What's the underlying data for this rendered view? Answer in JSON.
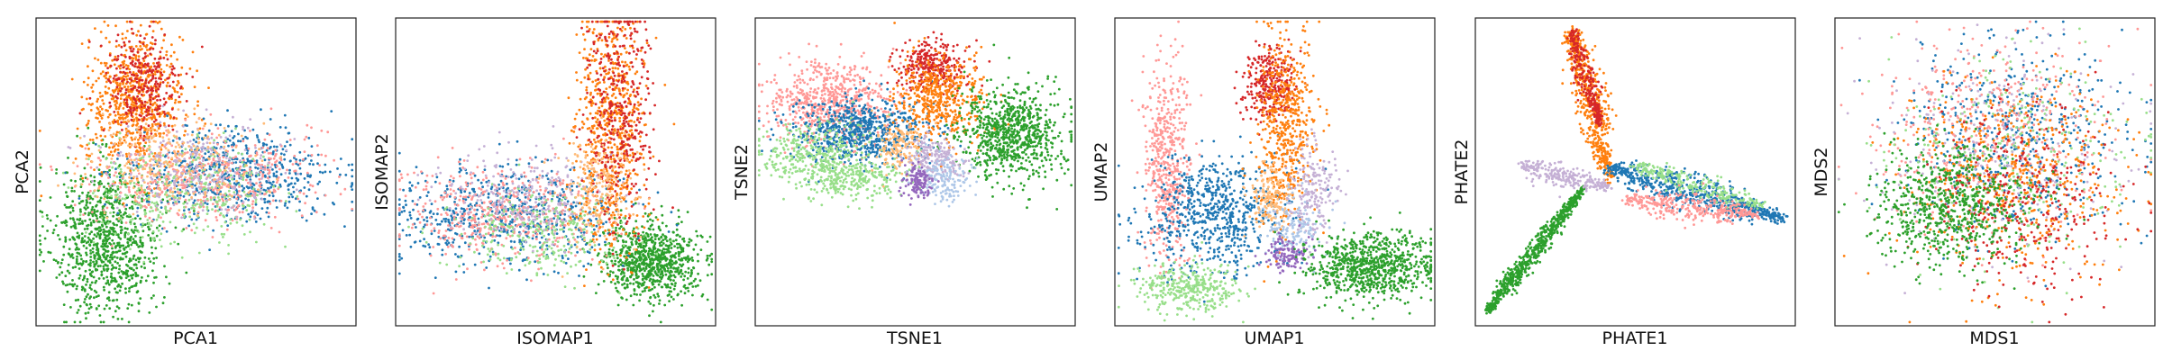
{
  "figure": {
    "title": "",
    "palette": {
      "blue": "#1f77b4",
      "orange": "#ff7f0e",
      "red": "#d62728",
      "green": "#2ca02c",
      "light_green": "#98df8a",
      "salmon": "#ff9896",
      "purple": "#9467bd",
      "lavender": "#c5b0d5",
      "peach": "#ffbb78",
      "light_blue": "#aec7e8"
    }
  },
  "chart_data": [
    {
      "type": "scatter",
      "title": "",
      "xlabel": "PCA1",
      "ylabel": "PCA2",
      "xlim": [
        0,
        10
      ],
      "ylim": [
        0,
        10
      ],
      "grid": false,
      "ticks": "none",
      "series": [
        {
          "color": "#2ca02c",
          "cx": 2.2,
          "cy": 2.8,
          "sx": 0.85,
          "sy": 1.2,
          "n": 900
        },
        {
          "color": "#ff7f0e",
          "cx": 3.1,
          "cy": 7.3,
          "sx": 0.75,
          "sy": 1.1,
          "n": 700
        },
        {
          "color": "#d62728",
          "cx": 3.3,
          "cy": 7.8,
          "sx": 0.6,
          "sy": 0.9,
          "n": 300
        },
        {
          "color": "#1f77b4",
          "cx": 6.2,
          "cy": 4.9,
          "sx": 1.6,
          "sy": 0.75,
          "n": 650
        },
        {
          "color": "#ff9896",
          "cx": 5.2,
          "cy": 4.8,
          "sx": 1.7,
          "sy": 0.75,
          "n": 500
        },
        {
          "color": "#98df8a",
          "cx": 4.6,
          "cy": 4.3,
          "sx": 1.5,
          "sy": 0.8,
          "n": 350
        },
        {
          "color": "#c5b0d5",
          "cx": 5.0,
          "cy": 5.2,
          "sx": 1.4,
          "sy": 0.7,
          "n": 250
        },
        {
          "color": "#ffbb78",
          "cx": 4.2,
          "cy": 5.4,
          "sx": 1.3,
          "sy": 0.7,
          "n": 250
        }
      ]
    },
    {
      "type": "scatter",
      "title": "",
      "xlabel": "ISOMAP1",
      "ylabel": "ISOMAP2",
      "xlim": [
        0,
        10
      ],
      "ylim": [
        0,
        10
      ],
      "grid": false,
      "ticks": "none",
      "series": [
        {
          "color": "#2ca02c",
          "cx": 8.0,
          "cy": 2.1,
          "sx": 0.75,
          "sy": 0.6,
          "n": 800
        },
        {
          "color": "#1f77b4",
          "cx": 3.5,
          "cy": 3.6,
          "sx": 1.8,
          "sy": 0.8,
          "n": 650
        },
        {
          "color": "#ff9896",
          "cx": 3.2,
          "cy": 3.6,
          "sx": 1.6,
          "sy": 0.8,
          "n": 450
        },
        {
          "color": "#98df8a",
          "cx": 4.5,
          "cy": 3.0,
          "sx": 1.4,
          "sy": 0.7,
          "n": 300
        },
        {
          "color": "#c5b0d5",
          "cx": 4.0,
          "cy": 4.2,
          "sx": 1.3,
          "sy": 0.7,
          "n": 250
        },
        {
          "color": "#ff7f0e",
          "cx": 6.7,
          "cy": 6.5,
          "sx": 0.55,
          "sy": 1.9,
          "n": 650
        },
        {
          "color": "#d62728",
          "cx": 7.0,
          "cy": 7.0,
          "sx": 0.5,
          "sy": 1.8,
          "n": 400
        },
        {
          "color": "#ffbb78",
          "cx": 6.3,
          "cy": 4.5,
          "sx": 0.6,
          "sy": 0.9,
          "n": 200
        }
      ]
    },
    {
      "type": "scatter",
      "title": "",
      "xlabel": "TSNE1",
      "ylabel": "TSNE2",
      "xlim": [
        0,
        10
      ],
      "ylim": [
        0,
        10
      ],
      "grid": false,
      "ticks": "none",
      "series": [
        {
          "color": "#ff9896",
          "cx": 2.3,
          "cy": 7.2,
          "sx": 1.0,
          "sy": 0.7,
          "n": 650
        },
        {
          "color": "#1f77b4",
          "cx": 3.2,
          "cy": 6.3,
          "sx": 1.1,
          "sy": 0.55,
          "n": 700
        },
        {
          "color": "#98df8a",
          "cx": 1.8,
          "cy": 5.6,
          "sx": 0.9,
          "sy": 0.55,
          "n": 350
        },
        {
          "color": "#98df8a",
          "cx": 3.0,
          "cy": 4.8,
          "sx": 0.9,
          "sy": 0.35,
          "n": 250
        },
        {
          "color": "#d62728",
          "cx": 5.5,
          "cy": 8.4,
          "sx": 0.55,
          "sy": 0.4,
          "n": 300
        },
        {
          "color": "#ff7f0e",
          "cx": 5.8,
          "cy": 7.4,
          "sx": 0.7,
          "sy": 0.7,
          "n": 500
        },
        {
          "color": "#2ca02c",
          "cx": 8.0,
          "cy": 6.2,
          "sx": 0.8,
          "sy": 0.75,
          "n": 800
        },
        {
          "color": "#ffbb78",
          "cx": 4.5,
          "cy": 5.8,
          "sx": 0.35,
          "sy": 0.4,
          "n": 150
        },
        {
          "color": "#c5b0d5",
          "cx": 5.6,
          "cy": 5.4,
          "sx": 0.45,
          "sy": 0.4,
          "n": 200
        },
        {
          "color": "#aec7e8",
          "cx": 5.9,
          "cy": 4.7,
          "sx": 0.45,
          "sy": 0.35,
          "n": 150
        },
        {
          "color": "#9467bd",
          "cx": 5.1,
          "cy": 4.7,
          "sx": 0.25,
          "sy": 0.25,
          "n": 120
        }
      ]
    },
    {
      "type": "scatter",
      "title": "",
      "xlabel": "UMAP1",
      "ylabel": "UMAP2",
      "xlim": [
        0,
        10
      ],
      "ylim": [
        0,
        10
      ],
      "grid": false,
      "ticks": "none",
      "series": [
        {
          "color": "#ff9896",
          "cx": 1.6,
          "cy": 5.4,
          "sx": 0.35,
          "sy": 1.6,
          "n": 500
        },
        {
          "color": "#1f77b4",
          "cx": 3.1,
          "cy": 3.6,
          "sx": 1.1,
          "sy": 0.9,
          "n": 700
        },
        {
          "color": "#98df8a",
          "cx": 2.3,
          "cy": 1.2,
          "sx": 0.8,
          "sy": 0.4,
          "n": 350
        },
        {
          "color": "#d62728",
          "cx": 4.8,
          "cy": 7.9,
          "sx": 0.4,
          "sy": 0.6,
          "n": 300
        },
        {
          "color": "#ff7f0e",
          "cx": 5.3,
          "cy": 6.4,
          "sx": 0.45,
          "sy": 1.6,
          "n": 550
        },
        {
          "color": "#ffbb78",
          "cx": 4.8,
          "cy": 4.2,
          "sx": 0.35,
          "sy": 0.5,
          "n": 150
        },
        {
          "color": "#c5b0d5",
          "cx": 6.2,
          "cy": 4.3,
          "sx": 0.4,
          "sy": 0.8,
          "n": 200
        },
        {
          "color": "#aec7e8",
          "cx": 5.5,
          "cy": 3.2,
          "sx": 0.5,
          "sy": 0.5,
          "n": 150
        },
        {
          "color": "#9467bd",
          "cx": 5.4,
          "cy": 2.3,
          "sx": 0.35,
          "sy": 0.3,
          "n": 120
        },
        {
          "color": "#2ca02c",
          "cx": 8.0,
          "cy": 1.9,
          "sx": 1.0,
          "sy": 0.55,
          "n": 800
        }
      ]
    },
    {
      "type": "scatter",
      "title": "",
      "xlabel": "PHATE1",
      "ylabel": "PHATE2",
      "xlim": [
        0,
        10
      ],
      "ylim": [
        0,
        10
      ],
      "grid": false,
      "ticks": "none",
      "series": [
        {
          "color": "#2ca02c",
          "x0": 0.4,
          "y0": 0.5,
          "x1": 3.4,
          "y1": 4.5,
          "spread": 0.15,
          "n": 700
        },
        {
          "color": "#ff7f0e",
          "x0": 3.0,
          "y0": 9.6,
          "x1": 4.2,
          "y1": 4.8,
          "spread": 0.28,
          "n": 550
        },
        {
          "color": "#d62728",
          "x0": 3.0,
          "y0": 9.6,
          "x1": 3.9,
          "y1": 6.5,
          "spread": 0.18,
          "n": 250
        },
        {
          "color": "#1f77b4",
          "x0": 4.2,
          "y0": 5.1,
          "x1": 9.6,
          "y1": 3.5,
          "spread": 0.3,
          "n": 650
        },
        {
          "color": "#98df8a",
          "x0": 5.0,
          "y0": 5.2,
          "x1": 9.0,
          "y1": 3.9,
          "spread": 0.22,
          "n": 250
        },
        {
          "color": "#ff9896",
          "x0": 4.8,
          "y0": 4.1,
          "x1": 8.8,
          "y1": 3.6,
          "spread": 0.25,
          "n": 350
        },
        {
          "color": "#c5b0d5",
          "x0": 1.5,
          "y0": 5.2,
          "x1": 4.2,
          "y1": 4.5,
          "spread": 0.22,
          "n": 250
        }
      ]
    },
    {
      "type": "scatter",
      "title": "",
      "xlabel": "MDS1",
      "ylabel": "MDS2",
      "xlim": [
        0,
        10
      ],
      "ylim": [
        0,
        10
      ],
      "grid": false,
      "ticks": "none",
      "series": [
        {
          "color": "#1f77b4",
          "cx": 5.8,
          "cy": 6.1,
          "sx": 1.7,
          "sy": 1.5,
          "n": 500
        },
        {
          "color": "#ff9896",
          "cx": 4.8,
          "cy": 6.3,
          "sx": 1.8,
          "sy": 1.5,
          "n": 450
        },
        {
          "color": "#98df8a",
          "cx": 5.5,
          "cy": 5.5,
          "sx": 1.9,
          "sy": 1.7,
          "n": 300
        },
        {
          "color": "#c5b0d5",
          "cx": 5.0,
          "cy": 5.8,
          "sx": 1.9,
          "sy": 1.7,
          "n": 250
        },
        {
          "color": "#ff7f0e",
          "cx": 5.5,
          "cy": 4.8,
          "sx": 1.7,
          "sy": 1.6,
          "n": 500
        },
        {
          "color": "#d62728",
          "cx": 5.9,
          "cy": 4.0,
          "sx": 1.5,
          "sy": 1.4,
          "n": 350
        },
        {
          "color": "#2ca02c",
          "cx": 3.6,
          "cy": 3.9,
          "sx": 1.2,
          "sy": 1.0,
          "n": 700
        }
      ]
    }
  ]
}
